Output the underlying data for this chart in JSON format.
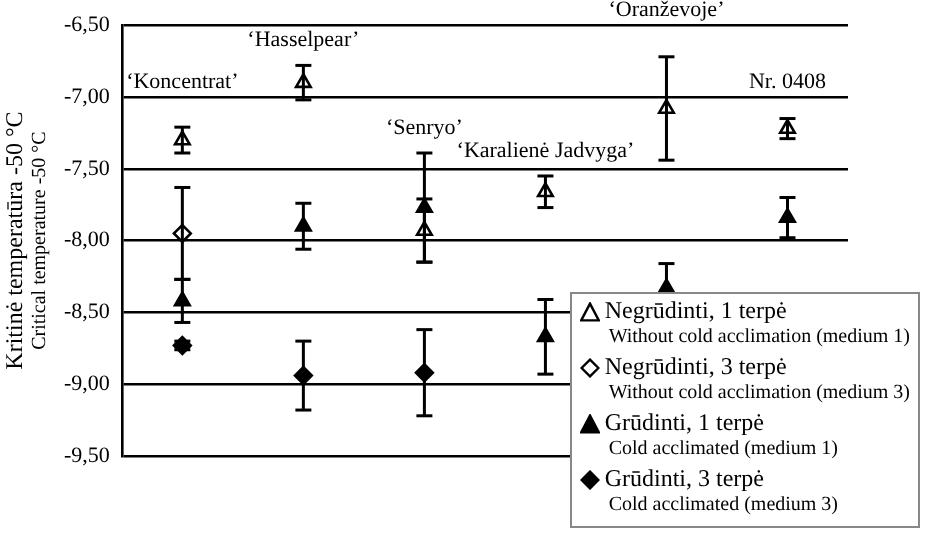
{
  "chart_data": {
    "type": "scatter",
    "ylabel": "Kritinė temperatūra -50 °C\nCritical temperature -50 °C",
    "categories": [
      "‘Koncentrat’",
      "‘Hasselpear’",
      "‘Senryo’",
      "‘Karalienė Jadvyga’",
      "‘Oranževoje’",
      "Nr. 0408"
    ],
    "series": [
      {
        "name": "Negrūdinti, 1 terpė\nWithout cold acclimation (medium 1)",
        "color": "#000000",
        "marker": "triangle",
        "values": [
          -7.3,
          -6.9,
          -7.93,
          -7.66,
          -7.08,
          -7.22
        ],
        "errors": [
          0.09,
          0.12,
          0.22,
          0.11,
          0.36,
          0.07
        ]
      },
      {
        "name": "Negrūdinti, 3 terpė\nWithout cold acclimation (medium 3)",
        "color": "#000000",
        "marker": "diamond",
        "values": [
          -7.95,
          null,
          null,
          null,
          null,
          null
        ],
        "errors": [
          0.32,
          null,
          null,
          null,
          null,
          null
        ]
      },
      {
        "name": "Grūdinti, 1 terpė\nCold acclimated (medium 1)",
        "color": "#000000",
        "marker": "triangle",
        "values": [
          -8.42,
          -7.9,
          -7.77,
          -8.67,
          -8.33,
          -7.84
        ],
        "errors": [
          0.15,
          0.16,
          0.38,
          0.26,
          0.17,
          0.14
        ]
      },
      {
        "name": "Grūdinti, 3 terpė\nCold acclimated (medium 3)",
        "color": "#000000",
        "marker": "diamond",
        "values": [
          -8.73,
          -8.94,
          -8.92,
          null,
          null,
          null
        ],
        "errors": [
          0.03,
          0.24,
          0.3,
          null,
          null,
          null
        ]
      }
    ],
    "ylim": [
      -9.5,
      -6.5
    ],
    "yticks": [
      {
        "value": -9.5,
        "label": "-9,50"
      },
      {
        "value": -9,
        "label": "-9,00"
      },
      {
        "value": -8.5,
        "label": "-8,50"
      },
      {
        "value": -8,
        "label": "-8,00"
      },
      {
        "value": -7.5,
        "label": "-7,50"
      },
      {
        "value": -7,
        "label": "-7,00"
      },
      {
        "value": -6.5,
        "label": "-6,50"
      }
    ],
    "grid": "y",
    "legend": "bottom right",
    "tick_labels": "y"
  }
}
